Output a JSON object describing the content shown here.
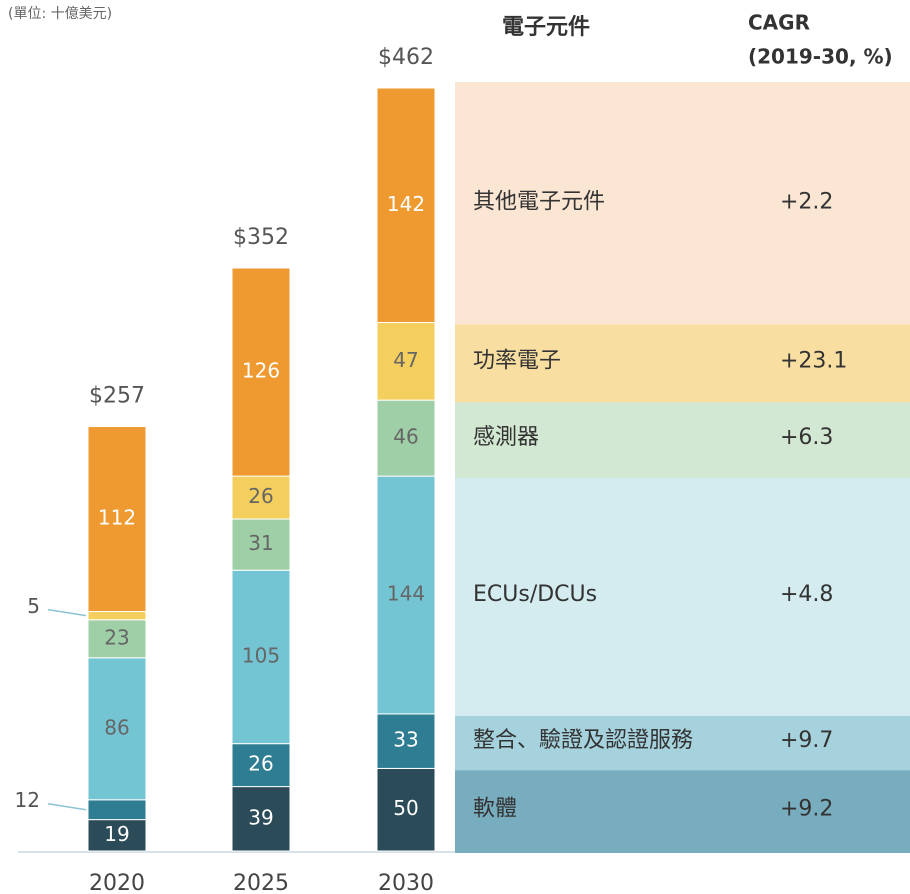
{
  "chart_data": {
    "type": "stacked_bar",
    "unit_note": "(單位: 十億美元)",
    "legend_header": "電子元件",
    "cagr_header": [
      "CAGR",
      "(2019-30, %)"
    ],
    "categories": [
      "2020",
      "2025",
      "2030"
    ],
    "totals": {
      "values": [
        257,
        352,
        462
      ],
      "value_labels": [
        "$257",
        "$352",
        "$462"
      ]
    },
    "series": [
      {
        "name": "軟體",
        "color": "#2a4b57",
        "legend_color": "#78adbf",
        "values": [
          19,
          39,
          50
        ],
        "cagr": 9.2,
        "cagr_label": "+9.2"
      },
      {
        "name": "整合、驗證及認證服務",
        "color": "#2e7d93",
        "legend_color": "#a6d2dd",
        "values": [
          12,
          26,
          33
        ],
        "cagr": 9.7,
        "cagr_label": "+9.7"
      },
      {
        "name": "ECUs/DCUs",
        "color": "#74c5d3",
        "legend_color": "#d4ecf0",
        "values": [
          86,
          105,
          144
        ],
        "cagr": 4.8,
        "cagr_label": "+4.8"
      },
      {
        "name": "感測器",
        "color": "#9ecfa6",
        "legend_color": "#d3e8d2",
        "values": [
          23,
          31,
          46
        ],
        "cagr": 6.3,
        "cagr_label": "+6.3"
      },
      {
        "name": "功率電子",
        "color": "#f4cf5e",
        "legend_color": "#f8dea0",
        "values": [
          5,
          26,
          47
        ],
        "cagr": 23.1,
        "cagr_label": "+23.1"
      },
      {
        "name": "其他電子元件",
        "color": "#ee9a30",
        "legend_color": "#fbe6d3",
        "values": [
          112,
          126,
          142
        ],
        "cagr": 2.2,
        "cagr_label": "+2.2"
      }
    ]
  }
}
